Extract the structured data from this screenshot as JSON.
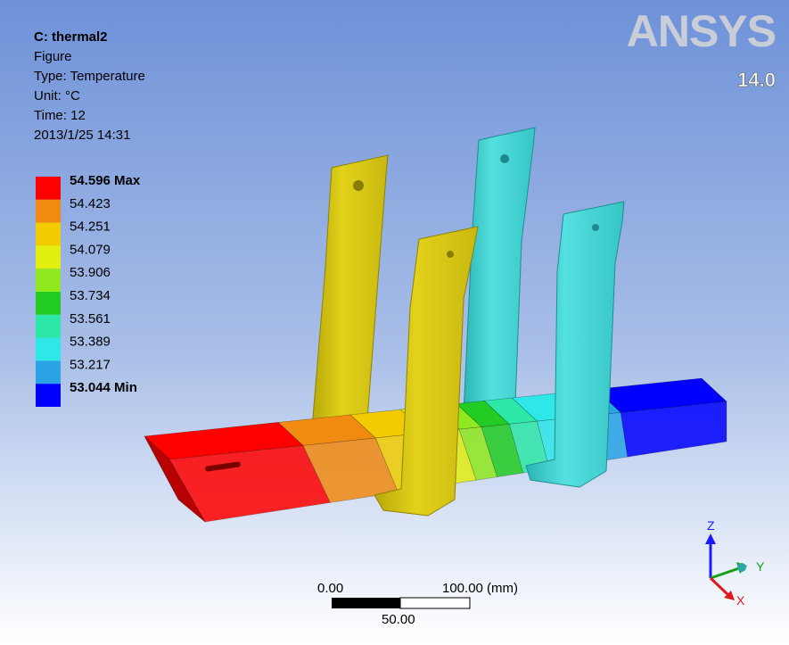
{
  "header": {
    "title": "C: thermal2",
    "lines": [
      "Figure",
      "Type: Temperature",
      "Unit: °C",
      "Time: 12",
      "2013/1/25 14:31"
    ]
  },
  "legend": [
    {
      "label": "54.596 Max",
      "color": "#ff0000"
    },
    {
      "label": "54.423",
      "color": "#f08a10"
    },
    {
      "label": "54.251",
      "color": "#f2cc00"
    },
    {
      "label": "54.079",
      "color": "#e2ee10"
    },
    {
      "label": "53.906",
      "color": "#90e81e"
    },
    {
      "label": "53.734",
      "color": "#22cc22"
    },
    {
      "label": "53.561",
      "color": "#2ee8a8"
    },
    {
      "label": "53.389",
      "color": "#2ee8e8"
    },
    {
      "label": "53.217",
      "color": "#2aa4e6"
    },
    {
      "label": "53.044 Min",
      "color": "#0000ff"
    }
  ],
  "logo": {
    "brand": "ANSYS",
    "version": "14.0"
  },
  "scale_bar": {
    "start": "0.00",
    "end": "100.00 (mm)",
    "mid": "50.00"
  },
  "triad": {
    "z": "Z",
    "y": "Y",
    "x": "X"
  }
}
